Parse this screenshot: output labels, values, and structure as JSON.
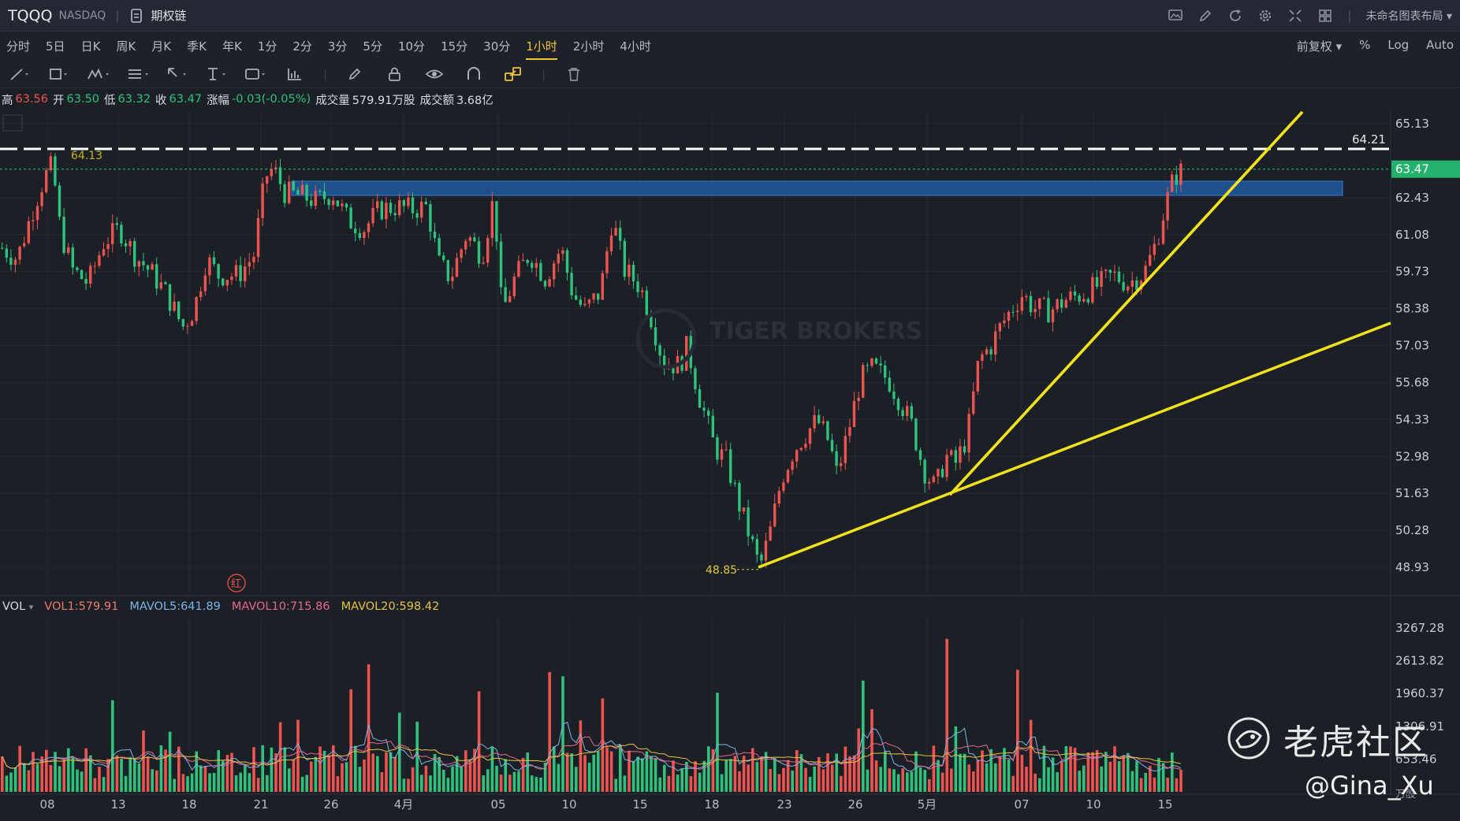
{
  "header": {
    "symbol": "TQQQ",
    "exchange": "NASDAQ",
    "options_chain": "期权链",
    "layout_name": "未命名图表布局"
  },
  "periods": [
    "分时",
    "5日",
    "日K",
    "周K",
    "月K",
    "季K",
    "年K",
    "1分",
    "2分",
    "3分",
    "5分",
    "10分",
    "15分",
    "30分",
    "1小时",
    "2小时",
    "4小时"
  ],
  "active_period": "1小时",
  "period_right": {
    "adjust": "前复权",
    "percent": "%",
    "log": "Log",
    "auto": "Auto"
  },
  "quote": {
    "high_label": "高",
    "high": "63.56",
    "open_label": "开",
    "open": "63.50",
    "low_label": "低",
    "low": "63.32",
    "close_label": "收",
    "close": "63.47",
    "change_label": "涨幅",
    "change": "-0.03(-0.05%)",
    "volume_label": "成交量",
    "volume": "579.91万股",
    "amount_label": "成交额",
    "amount": "3.68亿"
  },
  "price_axis": {
    "ticks": [
      "65.13",
      "62.43",
      "61.08",
      "59.73",
      "58.38",
      "57.03",
      "55.68",
      "54.33",
      "52.98",
      "51.63",
      "50.28",
      "48.93"
    ],
    "current_price": "63.47",
    "dashed_line_label": "64.21",
    "high_marker": "64.13",
    "low_marker": "48.85"
  },
  "volume": {
    "title": "VOL",
    "vol1": "VOL1:579.91",
    "mavol5": "MAVOL5:641.89",
    "mavol10": "MAVOL10:715.86",
    "mavol20": "MAVOL20:598.42",
    "ticks": [
      "3267.28",
      "2613.82",
      "1960.37",
      "1306.91",
      "653.46"
    ],
    "unit": "万股"
  },
  "x_axis": [
    "08",
    "13",
    "18",
    "21",
    "26",
    "4月",
    "05",
    "10",
    "15",
    "18",
    "23",
    "26",
    "5月",
    "07",
    "10",
    "15"
  ],
  "marker_red": "红",
  "watermark": {
    "chart_brand": "TIGER BROKERS",
    "community": "老虎社区",
    "handle": "@Gina_Xu"
  },
  "colors": {
    "up": "#ef5350",
    "down": "#2fc27c",
    "trendline": "#f2e21b",
    "band": "#1f5a9e",
    "active_tab": "#f0c53b",
    "price_tag": "#23b26d"
  }
}
